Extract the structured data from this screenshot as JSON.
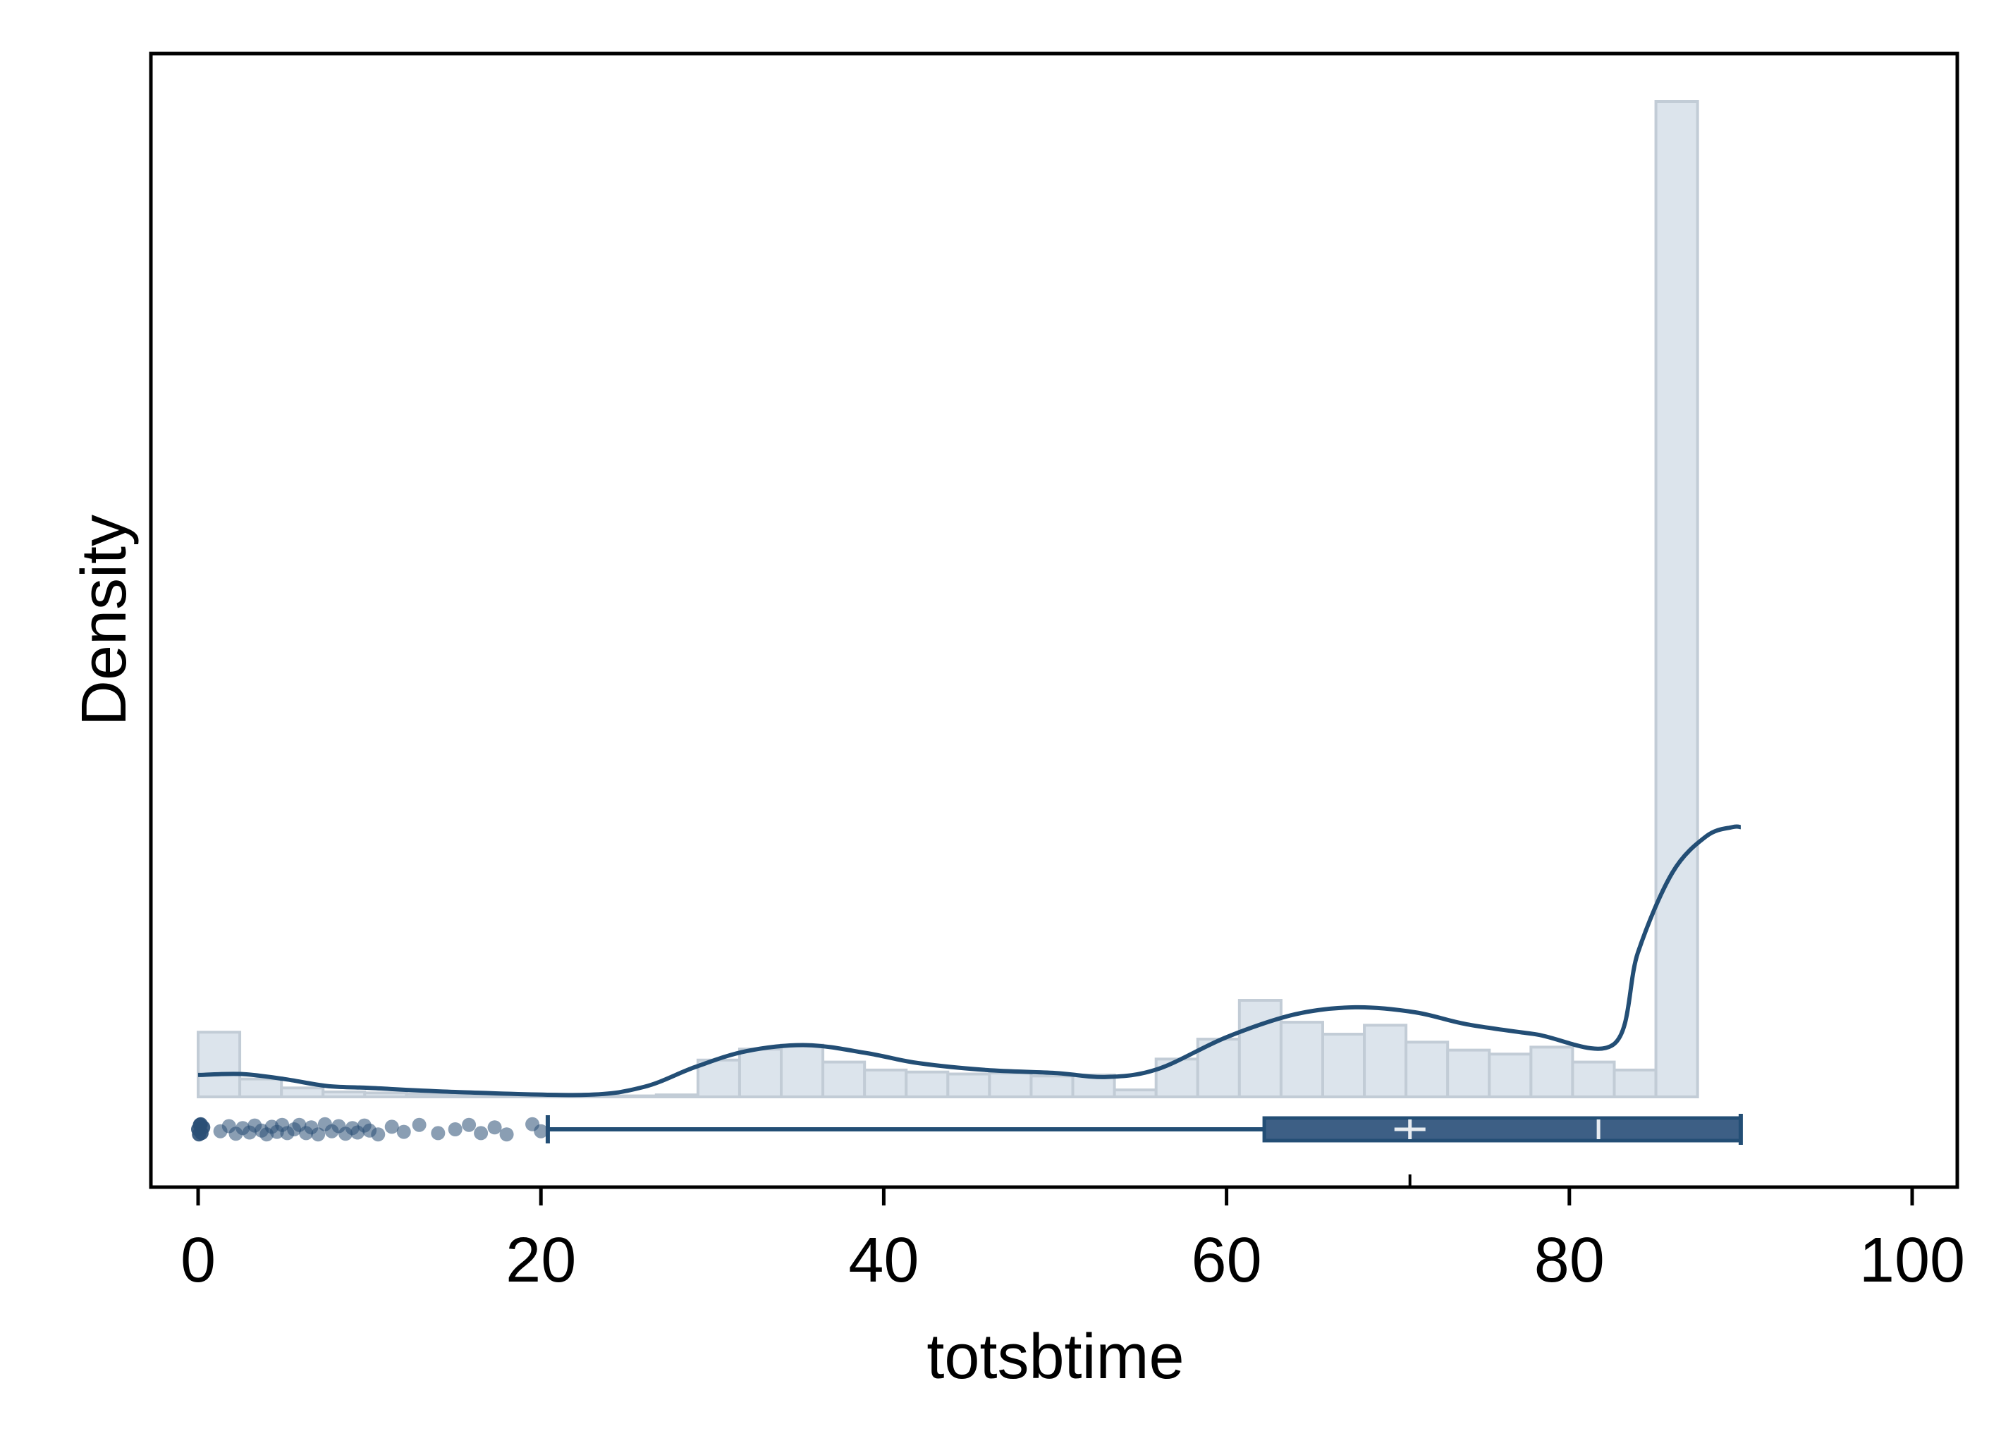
{
  "chart_data": {
    "type": "histogram",
    "xlabel": "totsbtime",
    "ylabel": "Density",
    "xlim": [
      -2.75,
      102.5
    ],
    "xticks": [
      0,
      20,
      40,
      60,
      80,
      100
    ],
    "y_tick_labels_shown": false,
    "grid": false,
    "legend": "none",
    "histogram": {
      "bin_width": 2.43,
      "bin_start": 0,
      "relative_heights": [
        0.065,
        0.018,
        0.009,
        0.005,
        0.004,
        0.003,
        0.002,
        0.002,
        0.001,
        0.001,
        0.001,
        0.002,
        0.037,
        0.048,
        0.052,
        0.035,
        0.027,
        0.025,
        0.023,
        0.024,
        0.021,
        0.022,
        0.007,
        0.038,
        0.058,
        0.097,
        0.075,
        0.063,
        0.072,
        0.055,
        0.047,
        0.043,
        0.05,
        0.035,
        0.027,
        1.0
      ]
    },
    "density_curve": {
      "x": [
        0,
        2.5,
        5,
        7.5,
        10,
        15,
        22.5,
        26,
        29,
        32,
        35.5,
        39,
        42,
        46,
        50,
        53,
        56,
        60,
        64,
        67.5,
        71,
        74,
        78,
        82.6,
        84,
        86,
        88,
        89.5,
        90
      ],
      "relative_y": [
        0.022,
        0.023,
        0.018,
        0.011,
        0.009,
        0.005,
        0.002,
        0.01,
        0.03,
        0.046,
        0.052,
        0.044,
        0.034,
        0.027,
        0.024,
        0.02,
        0.028,
        0.06,
        0.083,
        0.09,
        0.085,
        0.073,
        0.063,
        0.053,
        0.145,
        0.225,
        0.262,
        0.271,
        0.271
      ]
    },
    "boxplot": {
      "whisker_low": 20.4,
      "q1": 62.2,
      "median": 81.7,
      "q3": 90,
      "whisker_high": 90,
      "mean": 70.7
    },
    "outliers_x": [
      0,
      0.1,
      0.2,
      0.3,
      0.05,
      0.15,
      1.3,
      1.8,
      2.2,
      2.6,
      3.0,
      3.3,
      3.7,
      4.0,
      4.3,
      4.6,
      4.9,
      5.2,
      5.6,
      5.9,
      6.3,
      6.6,
      7.0,
      7.4,
      7.8,
      8.2,
      8.6,
      9.0,
      9.3,
      9.7,
      10.0,
      10.5,
      11.3,
      12.0,
      12.9,
      14.0,
      15.0,
      15.8,
      16.5,
      17.3,
      18.0,
      19.5,
      20.0
    ],
    "colors": {
      "curve": "#234e75",
      "bar_fill": "#dce4ec",
      "bar_edge": "#c2ccd6",
      "box_fill": "#3d5f85",
      "box_edge": "#234e75",
      "box_marks": "#e8ecf1",
      "outlier": "#2a4f75"
    }
  }
}
